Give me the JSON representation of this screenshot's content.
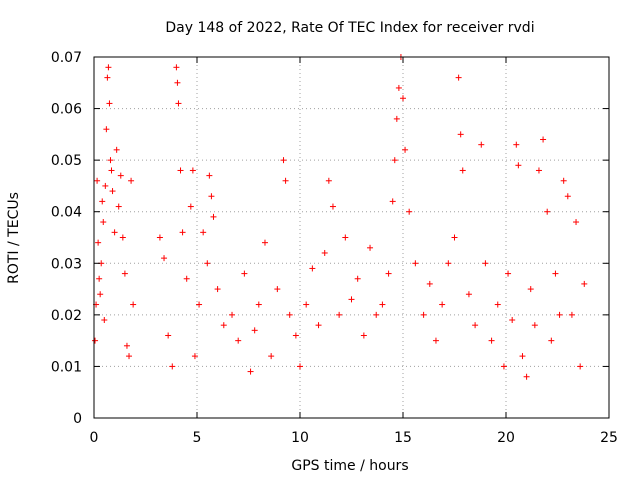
{
  "chart_data": {
    "type": "scatter",
    "title": "Day 148 of 2022, Rate Of TEC Index for receiver rvdi",
    "xlabel": "GPS time / hours",
    "ylabel": "ROTI / TECUs",
    "xlim": [
      0,
      25
    ],
    "ylim": [
      0,
      0.07
    ],
    "xticks": [
      "0",
      "5",
      "10",
      "15",
      "20",
      "25"
    ],
    "yticks": [
      "0",
      "0.01",
      "0.02",
      "0.03",
      "0.04",
      "0.05",
      "0.06",
      "0.07"
    ],
    "grid": true,
    "marker": "+",
    "color": "#ff0000",
    "series": [
      {
        "points": [
          [
            0.05,
            0.015
          ],
          [
            0.1,
            0.022
          ],
          [
            0.15,
            0.046
          ],
          [
            0.2,
            0.034
          ],
          [
            0.25,
            0.027
          ],
          [
            0.3,
            0.024
          ],
          [
            0.35,
            0.03
          ],
          [
            0.4,
            0.042
          ],
          [
            0.45,
            0.038
          ],
          [
            0.5,
            0.019
          ],
          [
            0.55,
            0.045
          ],
          [
            0.6,
            0.056
          ],
          [
            0.65,
            0.066
          ],
          [
            0.7,
            0.068
          ],
          [
            0.75,
            0.061
          ],
          [
            0.8,
            0.05
          ],
          [
            0.85,
            0.048
          ],
          [
            0.9,
            0.044
          ],
          [
            1.0,
            0.036
          ],
          [
            1.1,
            0.052
          ],
          [
            1.2,
            0.041
          ],
          [
            1.3,
            0.047
          ],
          [
            1.4,
            0.035
          ],
          [
            1.5,
            0.028
          ],
          [
            1.6,
            0.014
          ],
          [
            1.7,
            0.012
          ],
          [
            1.8,
            0.046
          ],
          [
            1.9,
            0.022
          ],
          [
            3.2,
            0.035
          ],
          [
            3.4,
            0.031
          ],
          [
            3.6,
            0.016
          ],
          [
            3.8,
            0.01
          ],
          [
            4.0,
            0.068
          ],
          [
            4.05,
            0.065
          ],
          [
            4.1,
            0.061
          ],
          [
            4.2,
            0.048
          ],
          [
            4.3,
            0.036
          ],
          [
            4.5,
            0.027
          ],
          [
            4.7,
            0.041
          ],
          [
            4.8,
            0.048
          ],
          [
            4.9,
            0.012
          ],
          [
            5.1,
            0.022
          ],
          [
            5.3,
            0.036
          ],
          [
            5.5,
            0.03
          ],
          [
            5.6,
            0.047
          ],
          [
            5.7,
            0.043
          ],
          [
            5.8,
            0.039
          ],
          [
            6.0,
            0.025
          ],
          [
            6.3,
            0.018
          ],
          [
            6.7,
            0.02
          ],
          [
            7.0,
            0.015
          ],
          [
            7.3,
            0.028
          ],
          [
            7.6,
            0.009
          ],
          [
            7.8,
            0.017
          ],
          [
            8.0,
            0.022
          ],
          [
            8.3,
            0.034
          ],
          [
            8.6,
            0.012
          ],
          [
            8.9,
            0.025
          ],
          [
            9.2,
            0.05
          ],
          [
            9.3,
            0.046
          ],
          [
            9.5,
            0.02
          ],
          [
            9.8,
            0.016
          ],
          [
            10.0,
            0.01
          ],
          [
            10.3,
            0.022
          ],
          [
            10.6,
            0.029
          ],
          [
            10.9,
            0.018
          ],
          [
            11.2,
            0.032
          ],
          [
            11.4,
            0.046
          ],
          [
            11.6,
            0.041
          ],
          [
            11.9,
            0.02
          ],
          [
            12.2,
            0.035
          ],
          [
            12.5,
            0.023
          ],
          [
            12.8,
            0.027
          ],
          [
            13.1,
            0.016
          ],
          [
            13.4,
            0.033
          ],
          [
            13.7,
            0.02
          ],
          [
            14.0,
            0.022
          ],
          [
            14.3,
            0.028
          ],
          [
            14.5,
            0.042
          ],
          [
            14.6,
            0.05
          ],
          [
            14.7,
            0.058
          ],
          [
            14.8,
            0.064
          ],
          [
            14.9,
            0.07
          ],
          [
            15.0,
            0.062
          ],
          [
            15.1,
            0.052
          ],
          [
            15.3,
            0.04
          ],
          [
            15.6,
            0.03
          ],
          [
            16.0,
            0.02
          ],
          [
            16.3,
            0.026
          ],
          [
            16.6,
            0.015
          ],
          [
            16.9,
            0.022
          ],
          [
            17.2,
            0.03
          ],
          [
            17.5,
            0.035
          ],
          [
            17.7,
            0.066
          ],
          [
            17.8,
            0.055
          ],
          [
            17.9,
            0.048
          ],
          [
            18.2,
            0.024
          ],
          [
            18.5,
            0.018
          ],
          [
            18.8,
            0.053
          ],
          [
            19.0,
            0.03
          ],
          [
            19.3,
            0.015
          ],
          [
            19.6,
            0.022
          ],
          [
            19.9,
            0.01
          ],
          [
            20.1,
            0.028
          ],
          [
            20.3,
            0.019
          ],
          [
            20.5,
            0.053
          ],
          [
            20.6,
            0.049
          ],
          [
            20.8,
            0.012
          ],
          [
            21.0,
            0.008
          ],
          [
            21.2,
            0.025
          ],
          [
            21.4,
            0.018
          ],
          [
            21.6,
            0.048
          ],
          [
            21.8,
            0.054
          ],
          [
            22.0,
            0.04
          ],
          [
            22.2,
            0.015
          ],
          [
            22.4,
            0.028
          ],
          [
            22.6,
            0.02
          ],
          [
            22.8,
            0.046
          ],
          [
            23.0,
            0.043
          ],
          [
            23.2,
            0.02
          ],
          [
            23.4,
            0.038
          ],
          [
            23.6,
            0.01
          ],
          [
            23.8,
            0.026
          ]
        ]
      }
    ]
  }
}
